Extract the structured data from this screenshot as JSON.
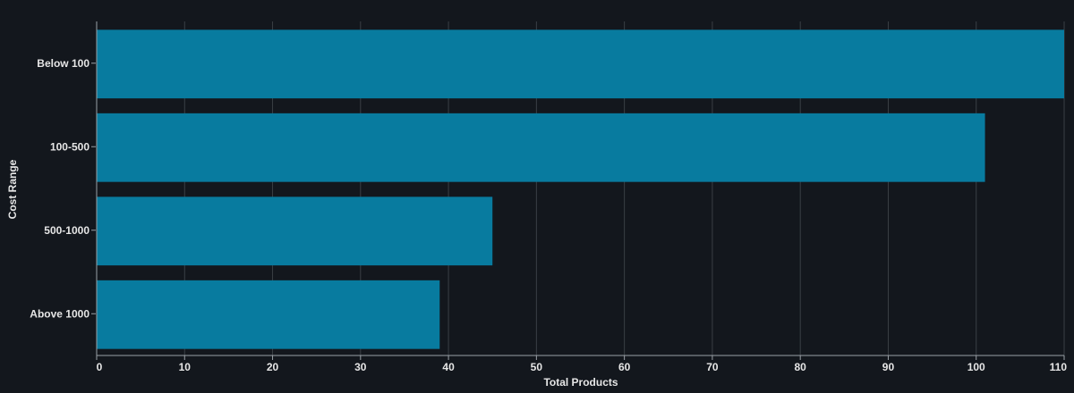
{
  "chart_data": {
    "type": "bar",
    "orientation": "horizontal",
    "categories": [
      "Below 100",
      "100-500",
      "500-1000",
      "Above 1000"
    ],
    "values": [
      110,
      101,
      45,
      39
    ],
    "xlabel": "Total Products",
    "ylabel": "Cost Range",
    "xlim": [
      0,
      110
    ],
    "xticks": [
      0,
      10,
      20,
      30,
      40,
      50,
      60,
      70,
      80,
      90,
      100,
      110
    ],
    "grid": "vertical",
    "colors": {
      "background": "#13171d",
      "bar": "#087b9f",
      "grid": "#3a3f45",
      "text": "#e6e6e6",
      "axis": "#9aa0a6"
    }
  }
}
